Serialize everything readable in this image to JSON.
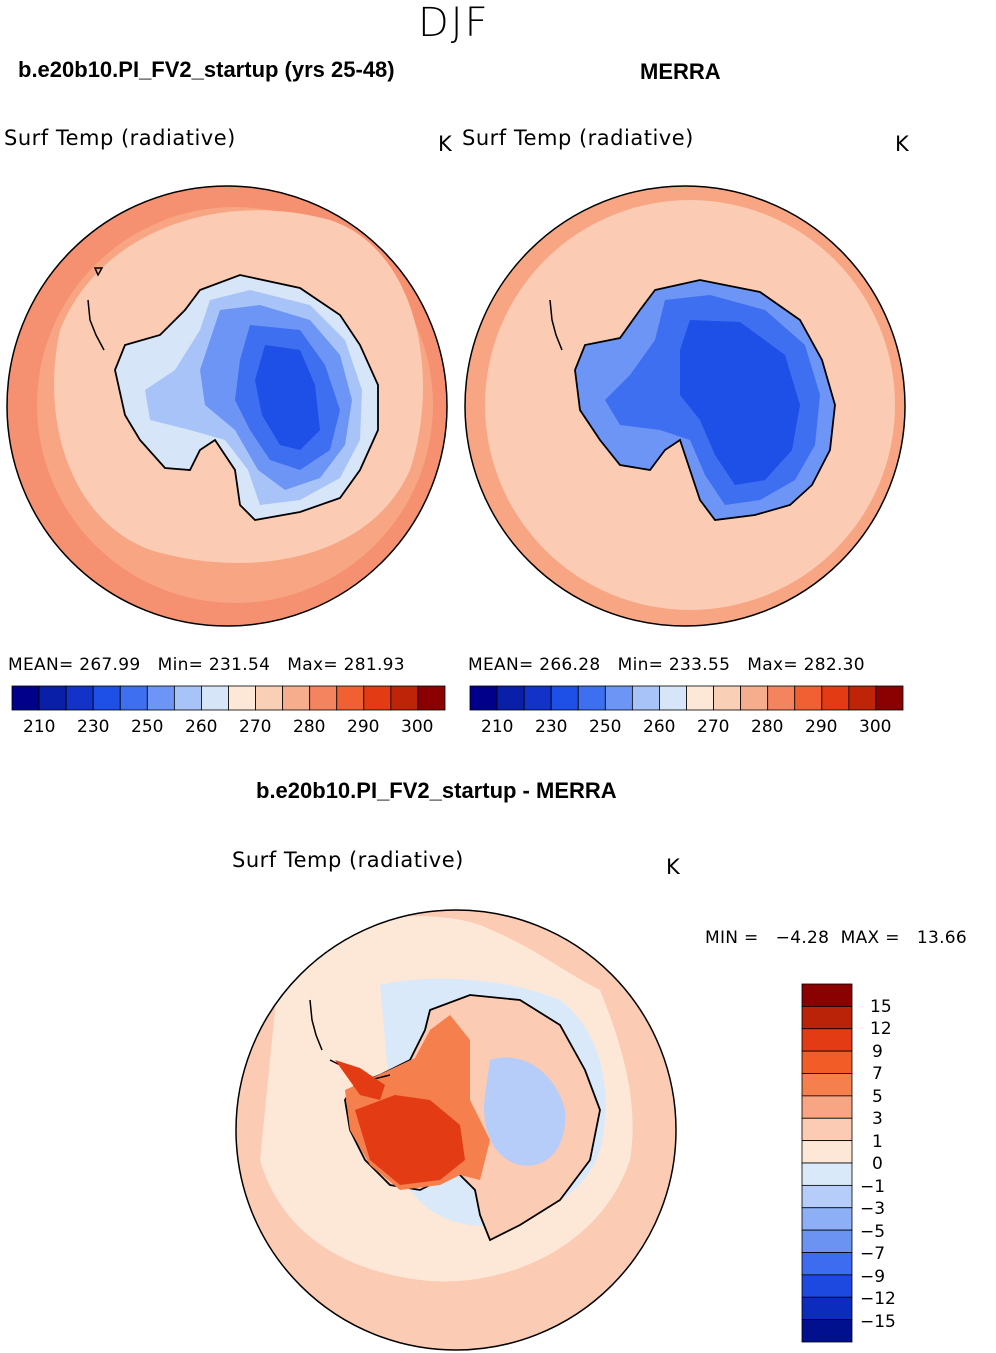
{
  "figure": {
    "season": "DJF",
    "model_title": "b.e20b10.PI_FV2_startup (yrs 25-48)",
    "obs_title": "MERRA",
    "diff_title": "b.e20b10.PI_FV2_startup - MERRA"
  },
  "panels": [
    {
      "id": "model",
      "variable": "Surf Temp (radiative)",
      "units": "K",
      "stats": {
        "mean": "267.99",
        "min": "231.54",
        "max": "281.93"
      },
      "stats_text": "MEAN= 267.99   Min= 231.54   Max= 281.93"
    },
    {
      "id": "obs",
      "variable": "Surf Temp (radiative)",
      "units": "K",
      "stats": {
        "mean": "266.28",
        "min": "233.55",
        "max": "282.30"
      },
      "stats_text": "MEAN= 266.28   Min= 233.55   Max= 282.30"
    },
    {
      "id": "diff",
      "variable": "Surf Temp (radiative)",
      "units": "K",
      "stats_text": "MIN =   −4.28  MAX =   13.66"
    }
  ],
  "colorbars": {
    "absolute": {
      "colors": [
        "#00008b",
        "#0a1fa8",
        "#1232c8",
        "#1e4fe6",
        "#3d6ff0",
        "#6c95f5",
        "#a8c3f7",
        "#d6e6f8",
        "#fde8d8",
        "#f9cfb5",
        "#f6ad8e",
        "#f4845f",
        "#f06033",
        "#e33c15",
        "#bd2408",
        "#8b0000"
      ],
      "labels": [
        "210",
        "230",
        "250",
        "260",
        "270",
        "280",
        "290",
        "300"
      ]
    },
    "difference": {
      "colors": [
        "#8b0000",
        "#bb2308",
        "#e33c14",
        "#f25c27",
        "#f57f4d",
        "#f7a582",
        "#fbcbb3",
        "#fde8d8",
        "#d9e9f9",
        "#b5cdf8",
        "#8caff5",
        "#6a93f2",
        "#3e6cf0",
        "#1e49e0",
        "#0b2cbd",
        "#00108f"
      ],
      "labels": [
        "15",
        "12",
        "9",
        "7",
        "5",
        "3",
        "1",
        "0",
        "−1",
        "−3",
        "−5",
        "−7",
        "−9",
        "−12",
        "−15"
      ]
    }
  }
}
